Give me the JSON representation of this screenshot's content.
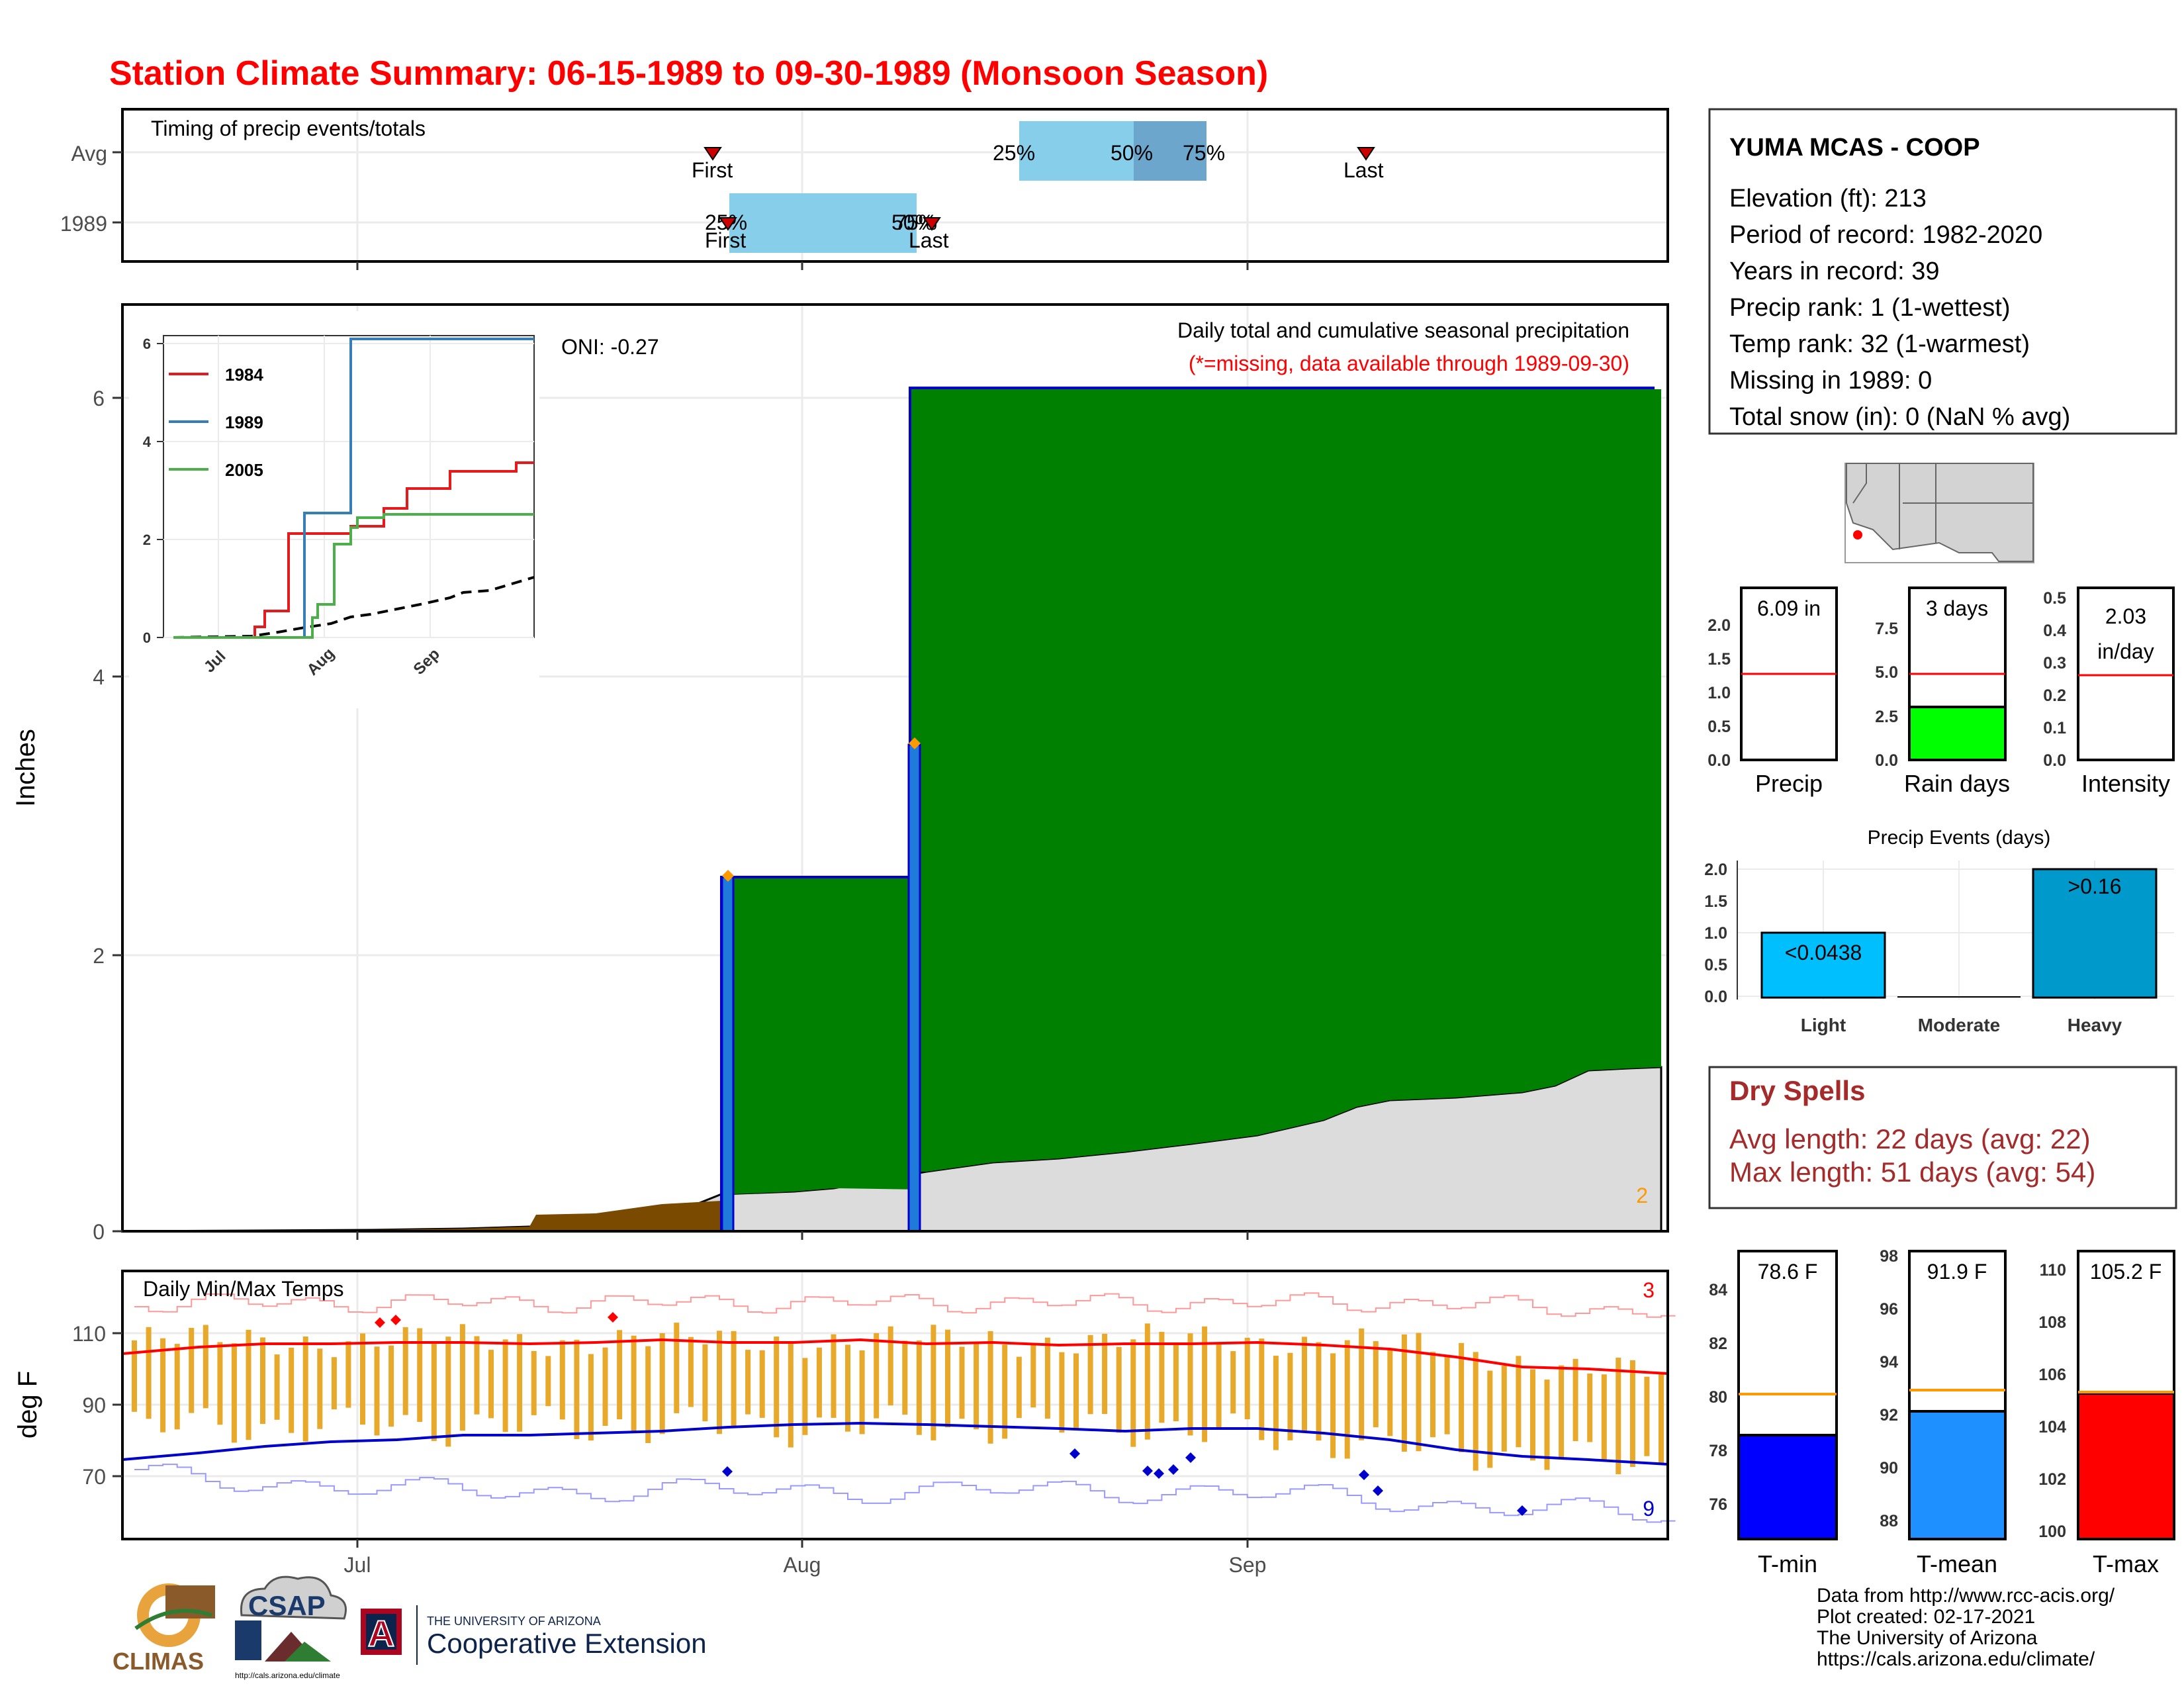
{
  "title": "Station Climate Summary: 06-15-1989 to 09-30-1989 (Monsoon Season)",
  "timing": {
    "label": "Timing of precip events/totals",
    "rows": [
      "Avg",
      "1989"
    ],
    "avg_pct": [
      "25%",
      "50%",
      "75%"
    ],
    "y1989_pct": [
      "25%",
      "50%",
      "75%"
    ],
    "first": "First",
    "last": "Last"
  },
  "main": {
    "ylabel": "Inches",
    "oni": "ONI: -0.27",
    "caption": "Daily total and cumulative seasonal precipitation",
    "missing_note": "(*=missing, data available through 1989-09-30)",
    "corner_count": "2",
    "yticks": [
      "0",
      "2",
      "4",
      "6"
    ]
  },
  "inset": {
    "legend": [
      "1984",
      "1989",
      "2005"
    ],
    "yticks": [
      "0",
      "2",
      "4",
      "6"
    ],
    "xticks": [
      "Jul",
      "Aug",
      "Sep"
    ]
  },
  "temps": {
    "label": "Daily Min/Max Temps",
    "ylabel": "deg F",
    "yticks": [
      "70",
      "90",
      "110"
    ],
    "count_max": "3",
    "count_min": "9",
    "xticks": [
      "Jul",
      "Aug",
      "Sep"
    ]
  },
  "station": {
    "name": "YUMA MCAS - COOP",
    "lines": [
      "Elevation (ft): 213",
      "Period of record: 1982-2020",
      "Years in record: 39",
      "Precip rank: 1 (1-wettest)",
      "Temp rank: 32 (1-warmest)",
      "Missing in 1989: 0",
      "Total snow (in): 0 (NaN % avg)"
    ]
  },
  "mini_bars": {
    "precip": {
      "label": "Precip",
      "value_text": "6.09 in",
      "yticks": [
        "0.0",
        "0.5",
        "1.0",
        "1.5",
        "2.0"
      ]
    },
    "raindays": {
      "label": "Rain days",
      "value_text": "3 days",
      "yticks": [
        "0.0",
        "2.5",
        "5.0",
        "7.5"
      ]
    },
    "intensity": {
      "label": "Intensity",
      "value_text": "2.03",
      "value_unit": "in/day",
      "yticks": [
        "0.0",
        "0.1",
        "0.2",
        "0.3",
        "0.4",
        "0.5"
      ]
    }
  },
  "events": {
    "title": "Precip Events (days)",
    "categories": [
      "Light",
      "Moderate",
      "Heavy"
    ],
    "labels": [
      "<0.0438",
      "",
      ">0.16"
    ],
    "yticks": [
      "0.0",
      "0.5",
      "1.0",
      "1.5",
      "2.0"
    ]
  },
  "dry_spells": {
    "title": "Dry Spells",
    "avg": "Avg length: 22 days (avg: 22)",
    "max": "Max length: 51 days (avg: 54)"
  },
  "temp_bars": {
    "tmin": {
      "label": "T-min",
      "value_text": "78.6 F",
      "yticks": [
        "76",
        "78",
        "80",
        "82",
        "84"
      ]
    },
    "tmean": {
      "label": "T-mean",
      "value_text": "91.9 F",
      "yticks": [
        "88",
        "90",
        "92",
        "94",
        "96",
        "98"
      ]
    },
    "tmax": {
      "label": "T-max",
      "value_text": "105.2 F",
      "yticks": [
        "100",
        "102",
        "104",
        "106",
        "108",
        "110"
      ]
    }
  },
  "footer": [
    "Data from http://www.rcc-acis.org/",
    "Plot created: 02-17-2021",
    "The University of Arizona",
    "https://cals.arizona.edu/climate/"
  ],
  "logos": {
    "climas": "CLIMAS",
    "csap": "CSAP",
    "csap_url": "http://cals.arizona.edu/climate",
    "ua_top": "THE UNIVERSITY OF ARIZONA",
    "ua_bottom": "Cooperative Extension",
    "ua_letter": "A"
  },
  "chart_data": [
    {
      "type": "line",
      "title": "Daily total and cumulative seasonal precipitation",
      "ylabel": "Inches",
      "ylim": [
        0,
        6.6
      ],
      "x_dates": [
        "06-15",
        "07-01",
        "08-01",
        "09-01",
        "09-30"
      ],
      "xticks": [
        "Jul",
        "Aug",
        "Sep"
      ],
      "series": [
        {
          "name": "1989",
          "points": [
            [
              "06-15",
              0
            ],
            [
              "07-26",
              0
            ],
            [
              "07-26",
              2.55
            ],
            [
              "08-08",
              2.55
            ],
            [
              "08-08",
              6.07
            ],
            [
              "09-30",
              6.09
            ]
          ]
        }
      ],
      "daily_bars": [
        [
          "07-26",
          2.55
        ],
        [
          "08-08",
          3.5
        ]
      ],
      "colors": {
        "cumulative": "#008000",
        "average": "#dcdcdc",
        "below": "#7a4a00",
        "bars": "#1e7bd9"
      }
    },
    {
      "type": "line",
      "series": [
        {
          "name": "1984",
          "color": "#e41a1c"
        },
        {
          "name": "1989",
          "color": "#377eb8"
        },
        {
          "name": "2005",
          "color": "#4daf4a"
        }
      ],
      "ylim": [
        0,
        6.2
      ],
      "xticks": [
        "Jul",
        "Aug",
        "Sep"
      ]
    },
    {
      "type": "bar",
      "title": "Precip Events (days)",
      "categories": [
        "Light",
        "Moderate",
        "Heavy"
      ],
      "values": [
        1,
        0,
        2
      ],
      "ylim": [
        0,
        2.1
      ]
    },
    {
      "type": "bar",
      "categories": [
        "T-min",
        "T-mean",
        "T-max"
      ],
      "values": [
        78.6,
        91.9,
        105.2
      ],
      "averages": [
        80.2,
        92.7,
        105.2
      ]
    }
  ]
}
